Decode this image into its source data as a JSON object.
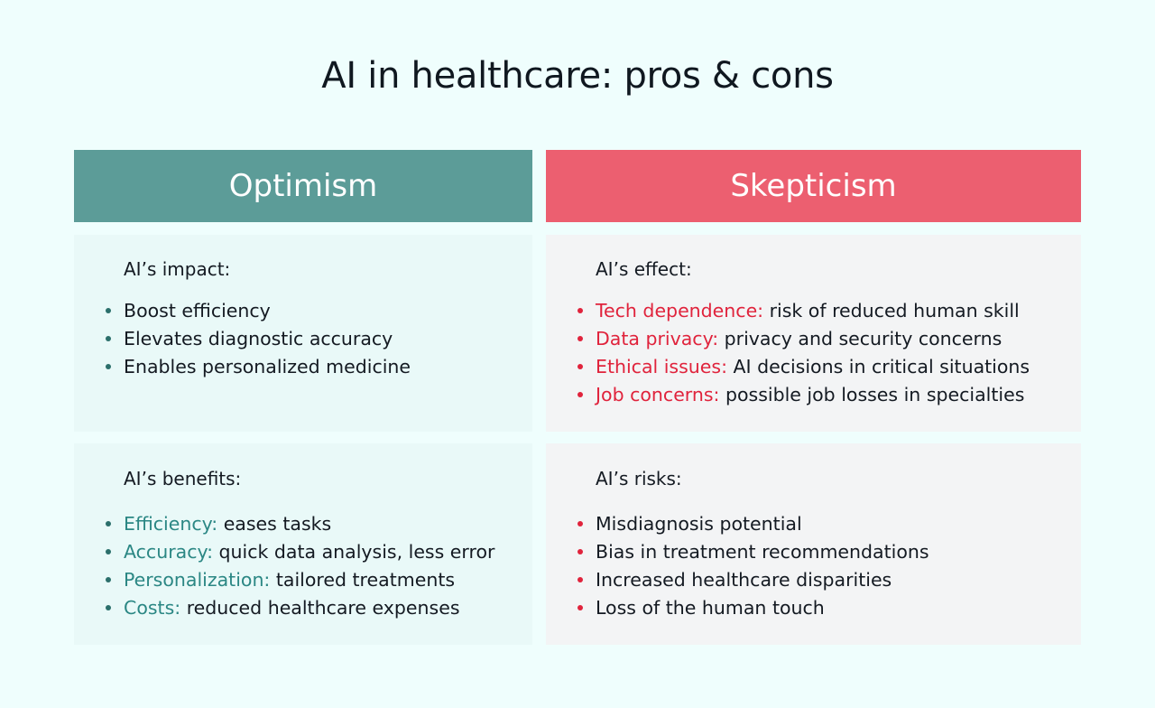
{
  "title": "AI in healthcare: pros & cons",
  "colors": {
    "background": "#effefd",
    "optimism_accent": "#5c9c98",
    "skepticism_accent": "#ec5f70",
    "optimism_panel": "#e9f9f8",
    "skepticism_panel": "#f3f4f5",
    "optimism_term": "#2b8784",
    "skepticism_term": "#e0233c",
    "optimism_bullet": "#2b6f6b",
    "skepticism_bullet": "#e0233c"
  },
  "optimism": {
    "header": "Optimism",
    "impact": {
      "heading": "AI’s impact:",
      "items": [
        "Boost efficiency",
        "Elevates diagnostic accuracy",
        "Enables personalized medicine"
      ]
    },
    "benefits": {
      "heading": "AI’s benefits:",
      "items": [
        {
          "term": "Efficiency:",
          "text": " eases tasks"
        },
        {
          "term": "Accuracy:",
          "text": " quick data analysis, less error"
        },
        {
          "term": "Personalization:",
          "text": " tailored treatments"
        },
        {
          "term": "Costs:",
          "text": " reduced healthcare expenses"
        }
      ]
    }
  },
  "skepticism": {
    "header": "Skepticism",
    "effect": {
      "heading": "AI’s effect:",
      "items": [
        {
          "term": "Tech dependence:",
          "text": " risk of reduced human skill"
        },
        {
          "term": "Data privacy:",
          "text": " privacy and security concerns"
        },
        {
          "term": "Ethical issues:",
          "text": " AI decisions in critical situations"
        },
        {
          "term": "Job concerns:",
          "text": " possible job losses in specialties"
        }
      ]
    },
    "risks": {
      "heading": "AI’s risks:",
      "items": [
        "Misdiagnosis potential",
        "Bias in treatment recommendations",
        "Increased healthcare disparities",
        "Loss of the human touch"
      ]
    }
  }
}
